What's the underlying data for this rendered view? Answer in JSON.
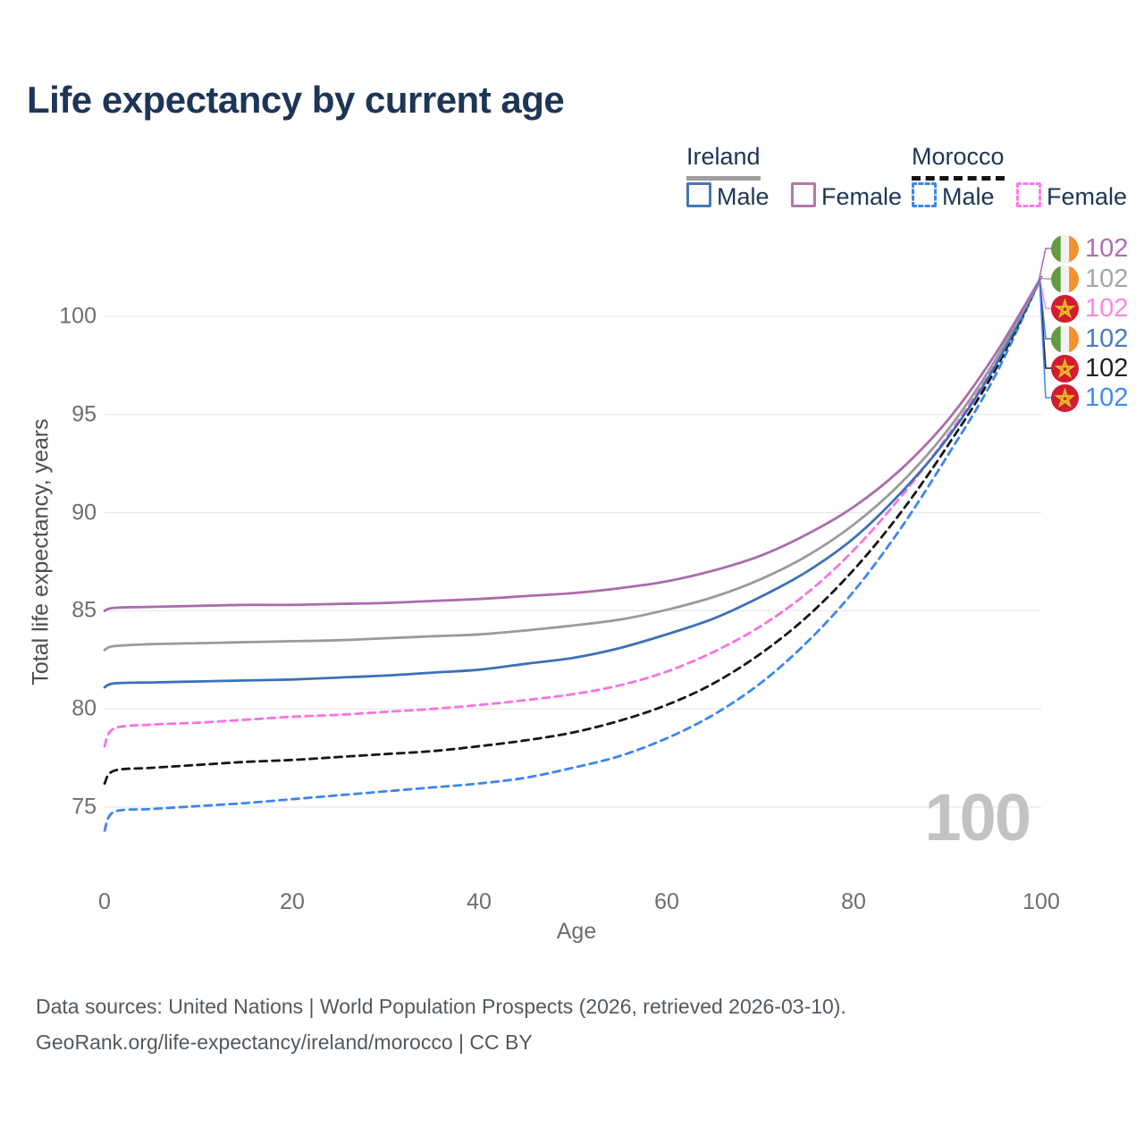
{
  "title": "Life expectancy by current age",
  "legend": {
    "groups": [
      {
        "label": "Ireland",
        "line_style": "solid",
        "items": [
          {
            "label": "Male"
          },
          {
            "label": "Female"
          }
        ]
      },
      {
        "label": "Morocco",
        "line_style": "dashed",
        "items": [
          {
            "label": "Male"
          },
          {
            "label": "Female"
          }
        ]
      }
    ]
  },
  "chart_data": {
    "type": "line",
    "title": "Life expectancy by current age",
    "xlabel": "Age",
    "ylabel": "Total life expectancy, years",
    "xlim": [
      0,
      100
    ],
    "ylim": [
      73,
      103
    ],
    "xticks": [
      0,
      20,
      40,
      60,
      80,
      100
    ],
    "yticks": [
      75,
      80,
      85,
      90,
      95,
      100
    ],
    "xtick_labels": [
      "0",
      "20",
      "40",
      "60",
      "80",
      "100"
    ],
    "ytick_labels_top_down": [
      "100",
      "95",
      "90",
      "85",
      "80",
      "75"
    ],
    "grid": "horizontal",
    "legend_position": "top-right",
    "x": [
      0,
      1,
      5,
      10,
      15,
      20,
      25,
      30,
      35,
      40,
      45,
      50,
      55,
      60,
      65,
      70,
      75,
      80,
      85,
      90,
      95,
      100
    ],
    "series": [
      {
        "name": "Morocco Male",
        "country": "Morocco",
        "sex": "Male",
        "style": "dashed",
        "color": "#3b86f0",
        "values": [
          73.8,
          74.75,
          74.9,
          75.05,
          75.2,
          75.4,
          75.6,
          75.8,
          76.0,
          76.2,
          76.5,
          77.0,
          77.6,
          78.5,
          79.7,
          81.3,
          83.4,
          86.0,
          89.2,
          92.9,
          96.9,
          102
        ]
      },
      {
        "name": "Morocco Both sexes",
        "country": "Morocco",
        "sex": "Both",
        "style": "dashed",
        "color": "#161616",
        "values": [
          76.2,
          76.85,
          77.0,
          77.15,
          77.3,
          77.4,
          77.55,
          77.7,
          77.85,
          78.1,
          78.4,
          78.8,
          79.4,
          80.2,
          81.3,
          82.8,
          84.7,
          87.1,
          90.0,
          93.4,
          97.2,
          102
        ]
      },
      {
        "name": "Morocco Female",
        "country": "Morocco",
        "sex": "Female",
        "style": "dashed",
        "color": "#fb71e1",
        "values": [
          78.1,
          79.0,
          79.2,
          79.3,
          79.45,
          79.6,
          79.7,
          79.85,
          80.0,
          80.2,
          80.45,
          80.75,
          81.2,
          81.9,
          82.9,
          84.2,
          85.9,
          88.1,
          90.8,
          93.9,
          97.5,
          102
        ]
      },
      {
        "name": "Ireland Male",
        "country": "Ireland",
        "sex": "Male",
        "style": "solid",
        "color": "#3d71b8",
        "values": [
          81.1,
          81.3,
          81.35,
          81.4,
          81.45,
          81.5,
          81.6,
          81.7,
          81.85,
          82.0,
          82.3,
          82.6,
          83.1,
          83.8,
          84.6,
          85.7,
          87.0,
          88.7,
          91.0,
          93.8,
          97.4,
          102
        ]
      },
      {
        "name": "Ireland Both sexes",
        "country": "Ireland",
        "sex": "Both",
        "style": "solid",
        "color": "#9a9a9a",
        "values": [
          83.0,
          83.2,
          83.3,
          83.35,
          83.4,
          83.45,
          83.5,
          83.6,
          83.7,
          83.8,
          84.0,
          84.25,
          84.55,
          85.05,
          85.7,
          86.6,
          87.8,
          89.4,
          91.5,
          94.2,
          97.7,
          102
        ]
      },
      {
        "name": "Ireland Female",
        "country": "Ireland",
        "sex": "Female",
        "style": "solid",
        "color": "#ab6bad",
        "values": [
          85.0,
          85.15,
          85.2,
          85.25,
          85.3,
          85.3,
          85.35,
          85.4,
          85.5,
          85.6,
          85.75,
          85.9,
          86.15,
          86.5,
          87.05,
          87.8,
          88.9,
          90.3,
          92.2,
          94.7,
          98.0,
          102
        ]
      }
    ],
    "end_labels": [
      {
        "series": "Ireland Female",
        "flag": "ireland",
        "value": "102",
        "color": "#b06cb2"
      },
      {
        "series": "Ireland Both sexes",
        "flag": "ireland",
        "value": "102",
        "color": "#a6a6a6"
      },
      {
        "series": "Morocco Female",
        "flag": "morocco",
        "value": "102",
        "color": "#ff85e2"
      },
      {
        "series": "Ireland Male",
        "flag": "ireland",
        "value": "102",
        "color": "#4a79c4"
      },
      {
        "series": "Morocco Both sexes",
        "flag": "morocco",
        "value": "102",
        "color": "#1f1f1f"
      },
      {
        "series": "Morocco Male",
        "flag": "morocco",
        "value": "102",
        "color": "#4189f0"
      }
    ],
    "age_counter": "100"
  },
  "footer": {
    "line1": "Data sources: United Nations | World Population Prospects (2026, retrieved 2026-03-10).",
    "line2": "GeoRank.org/life-expectancy/ireland/morocco | CC BY"
  }
}
